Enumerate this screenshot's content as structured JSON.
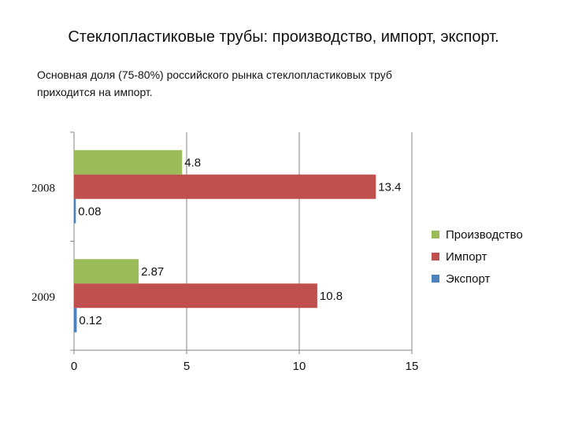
{
  "title": "Стеклопластиковые трубы: производство, импорт, экспорт.",
  "subtitle": "Основная доля (75-80%) российского рынка стеклопластиковых труб приходится на импорт.",
  "chart_data": {
    "type": "bar",
    "orientation": "horizontal",
    "categories": [
      "2008",
      "2009"
    ],
    "series": [
      {
        "name": "Производство",
        "values": [
          4.8,
          2.87
        ],
        "color": "#9BBB59"
      },
      {
        "name": "Импорт",
        "values": [
          13.4,
          10.8
        ],
        "color": "#C0504D"
      },
      {
        "name": "Экспорт",
        "values": [
          0.08,
          0.12
        ],
        "color": "#4F81BD"
      }
    ],
    "data_labels": [
      [
        "4.8",
        "13.4",
        "0.08"
      ],
      [
        "2.87",
        "10.8",
        "0.12"
      ]
    ],
    "xlim": [
      0,
      15
    ],
    "x_ticks": [
      "0",
      "5",
      "10",
      "15"
    ],
    "grid": true,
    "legend": "right"
  }
}
